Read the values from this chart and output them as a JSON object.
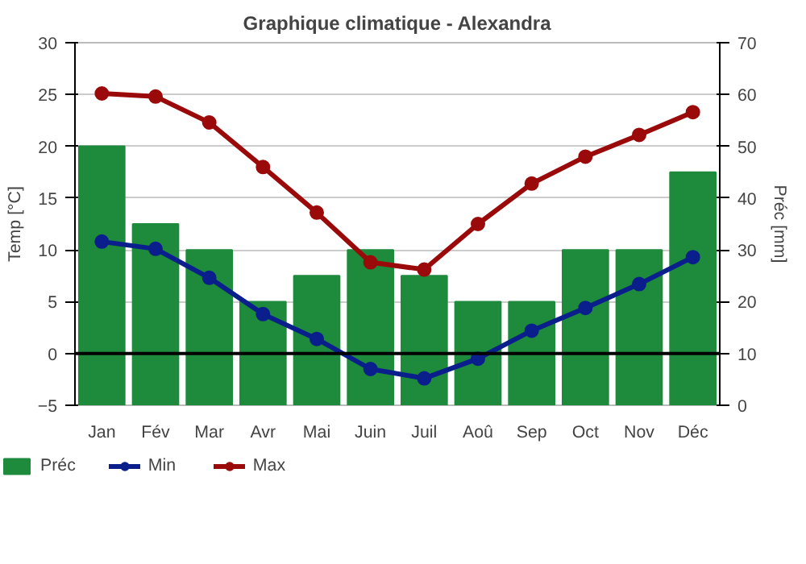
{
  "chart_data": {
    "type": "bar",
    "title": "Graphique climatique - Alexandra",
    "ylabel": "Temp [°C]",
    "y2label": "Préc [mm]",
    "categories": [
      "Jan",
      "Fév",
      "Mar",
      "Avr",
      "Mai",
      "Juin",
      "Juil",
      "Aoû",
      "Sep",
      "Oct",
      "Nov",
      "Déc"
    ],
    "series": [
      {
        "name": "Préc",
        "axis": "y2",
        "color": "#1e8a3c",
        "values": [
          50,
          35,
          30,
          20,
          25,
          30,
          25,
          20,
          20,
          30,
          30,
          45
        ]
      },
      {
        "name": "Min",
        "type": "line",
        "color": "#0a1e8c",
        "values": [
          10.8,
          10.1,
          7.3,
          3.8,
          1.4,
          -1.5,
          -2.4,
          -0.5,
          2.2,
          4.4,
          6.7,
          9.3
        ]
      },
      {
        "name": "Max",
        "type": "line",
        "color": "#9b0a0a",
        "values": [
          25.1,
          24.8,
          22.3,
          18.0,
          13.6,
          8.8,
          8.1,
          12.5,
          16.4,
          19.0,
          21.1,
          23.3
        ]
      }
    ],
    "ylim": [
      -5,
      30
    ],
    "yticks": [
      -5,
      0,
      5,
      10,
      15,
      20,
      25,
      30
    ],
    "y2lim": [
      0,
      70
    ],
    "y2ticks": [
      0,
      10,
      20,
      30,
      40,
      50,
      60,
      70
    ],
    "ref_lines": [
      {
        "axis": "y",
        "value": 0,
        "color": "#000000"
      }
    ],
    "grid": "y",
    "legend": "bottom",
    "marker": "circle",
    "line_style": "solid"
  }
}
